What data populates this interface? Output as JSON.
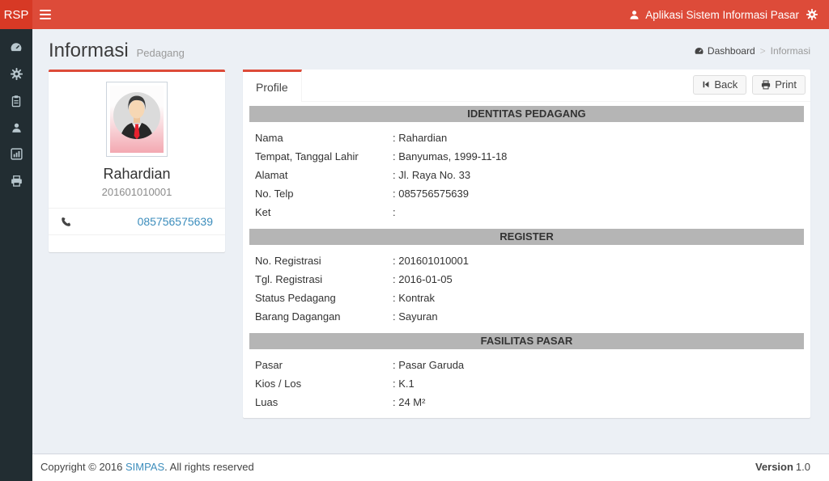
{
  "colors": {
    "navbar_red": "#dd4b39",
    "logo_red": "#d73925",
    "sidebar_dark": "#222d32",
    "sidebar_icon": "#b8c7ce",
    "content_bg": "#ecf0f5",
    "link_blue": "#3c8dbc",
    "section_header_bg": "#b5b5b5"
  },
  "navbar": {
    "brand": "RSP",
    "app_title": "Aplikasi Sistem Informasi Pasar"
  },
  "sidebar": {
    "items": [
      {
        "icon": "dashboard"
      },
      {
        "icon": "settings"
      },
      {
        "icon": "clipboard"
      },
      {
        "icon": "user"
      },
      {
        "icon": "chart"
      },
      {
        "icon": "print"
      }
    ]
  },
  "page_header": {
    "title": "Informasi",
    "subtitle": "Pedagang"
  },
  "breadcrumb": {
    "home": "Dashboard",
    "separator": ">",
    "current": "Informasi"
  },
  "profile_card": {
    "name": "Rahardian",
    "registration_number": "201601010001",
    "phone": "085756575639"
  },
  "tabs": {
    "active": "Profile"
  },
  "toolbar": {
    "back_label": "Back",
    "print_label": "Print"
  },
  "panel": {
    "separator": ":",
    "sections": [
      {
        "title": "IDENTITAS PEDAGANG",
        "fields": [
          {
            "label": "Nama",
            "value": "Rahardian"
          },
          {
            "label": "Tempat, Tanggal Lahir",
            "value": "Banyumas, 1999-11-18"
          },
          {
            "label": "Alamat",
            "value": "Jl. Raya No. 33"
          },
          {
            "label": "No. Telp",
            "value": "085756575639"
          },
          {
            "label": "Ket",
            "value": ""
          }
        ]
      },
      {
        "title": "REGISTER",
        "fields": [
          {
            "label": "No. Registrasi",
            "value": "201601010001"
          },
          {
            "label": "Tgl. Registrasi",
            "value": "2016-01-05"
          },
          {
            "label": "Status Pedagang",
            "value": "Kontrak"
          },
          {
            "label": "Barang Dagangan",
            "value": "Sayuran"
          }
        ]
      },
      {
        "title": "FASILITAS PASAR",
        "fields": [
          {
            "label": "Pasar",
            "value": "Pasar Garuda"
          },
          {
            "label": "Kios / Los",
            "value": "K.1"
          },
          {
            "label": "Luas",
            "value": "24 M²"
          }
        ]
      }
    ]
  },
  "footer": {
    "copyright_prefix": "Copyright © 2016 ",
    "brand_link": "SIMPAS",
    "copyright_suffix": ". All rights reserved",
    "version_label": "Version",
    "version_value": "1.0"
  }
}
